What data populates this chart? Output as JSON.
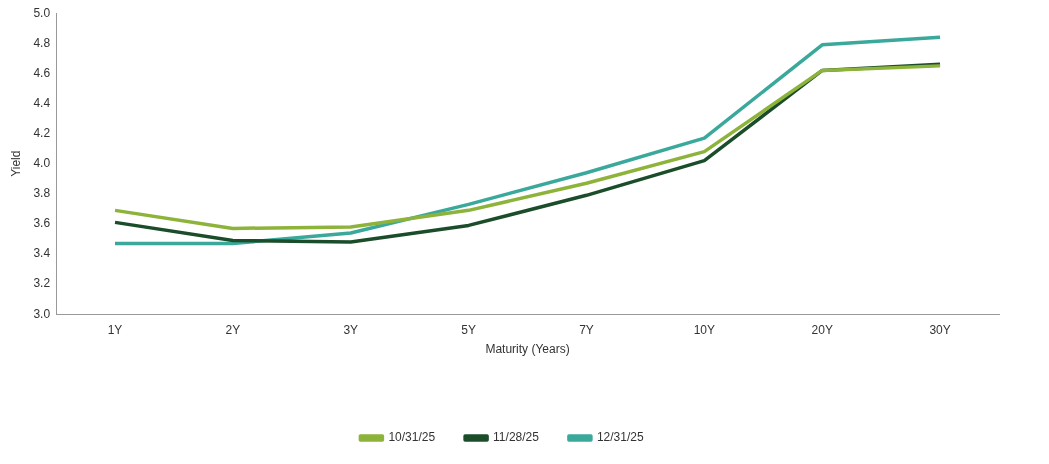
{
  "chart_data": {
    "type": "line",
    "xlabel": "Maturity (Years)",
    "ylabel": "Yield",
    "categories": [
      "1Y",
      "2Y",
      "3Y",
      "5Y",
      "7Y",
      "10Y",
      "20Y",
      "30Y"
    ],
    "series": [
      {
        "name": "10/31/25",
        "color": "#8db33a",
        "values": [
          3.69,
          3.57,
          3.58,
          3.69,
          3.87,
          4.08,
          4.62,
          4.65
        ]
      },
      {
        "name": "11/28/25",
        "color": "#1b4d2b",
        "values": [
          3.61,
          3.49,
          3.48,
          3.59,
          3.79,
          4.02,
          4.62,
          4.66
        ]
      },
      {
        "name": "12/31/25",
        "color": "#3aa99b",
        "values": [
          3.47,
          3.47,
          3.54,
          3.73,
          3.94,
          4.17,
          4.79,
          4.84
        ]
      }
    ],
    "ylim": [
      3.0,
      5.0
    ],
    "yticks": [
      {
        "value": 3,
        "label": "3.0"
      },
      3.2,
      3.4,
      3.6,
      3.8,
      {
        "value": 4,
        "label": "4.0"
      },
      4.2,
      4.4,
      4.6,
      4.8,
      {
        "value": 5,
        "label": "5.0"
      }
    ],
    "grid": false,
    "legend": "bottom",
    "marker": "none",
    "line_style": "solid"
  }
}
